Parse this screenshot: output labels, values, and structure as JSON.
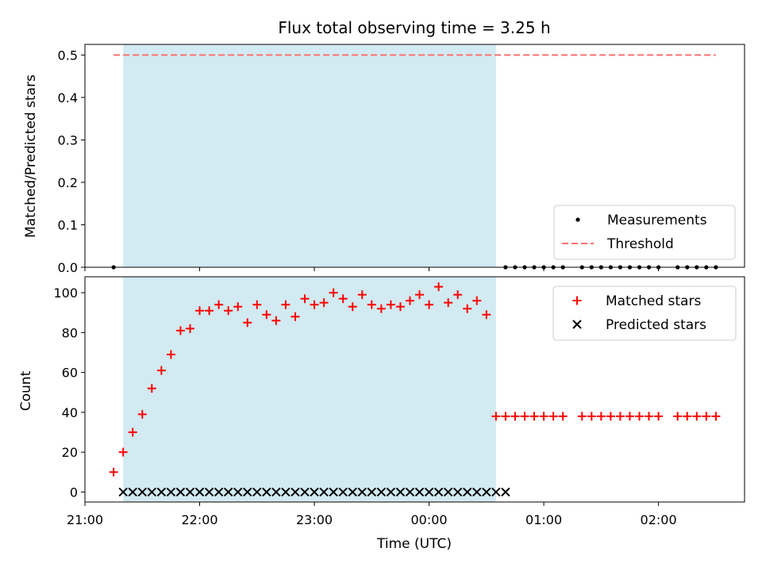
{
  "chart_data": [
    {
      "type": "scatter",
      "title": "Flux total observing time = 3.25 h",
      "ylabel": "Matched/Predicted stars",
      "xlabel": "",
      "x_axis": "time",
      "xlim": [
        "21:00",
        "02:45"
      ],
      "ylim": [
        0,
        0.525
      ],
      "yticks": [
        0.0,
        0.1,
        0.2,
        0.3,
        0.4,
        0.5
      ],
      "ytick_labels": [
        "0.0",
        "0.1",
        "0.2",
        "0.3",
        "0.4",
        "0.5"
      ],
      "observing_window": [
        "21:20",
        "00:35"
      ],
      "observing_window_color": "#add8e6",
      "series": [
        {
          "name": "Measurements",
          "marker": "dot",
          "color": "#000000",
          "x": [
            "21:15",
            "00:40",
            "00:45",
            "00:50",
            "00:55",
            "01:00",
            "01:05",
            "01:10",
            "01:20",
            "01:25",
            "01:30",
            "01:35",
            "01:40",
            "01:45",
            "01:50",
            "01:55",
            "02:00",
            "02:10",
            "02:15",
            "02:20",
            "02:25",
            "02:30"
          ],
          "y": [
            0,
            0,
            0,
            0,
            0,
            0,
            0,
            0,
            0,
            0,
            0,
            0,
            0,
            0,
            0,
            0,
            0,
            0,
            0,
            0,
            0,
            0
          ]
        },
        {
          "name": "Threshold",
          "marker": "dashed-line",
          "color": "#ff7070",
          "x": [
            "21:15",
            "02:30"
          ],
          "y": [
            0.5,
            0.5
          ]
        }
      ],
      "legend": "lower-right"
    },
    {
      "type": "scatter",
      "title": "",
      "ylabel": "Count",
      "xlabel": "Time (UTC)",
      "x_axis": "time",
      "xlim": [
        "21:00",
        "02:45"
      ],
      "ylim": [
        -5,
        108
      ],
      "yticks": [
        0,
        20,
        40,
        60,
        80,
        100
      ],
      "ytick_labels": [
        "0",
        "20",
        "40",
        "60",
        "80",
        "100"
      ],
      "xticks": [
        "21:00",
        "22:00",
        "23:00",
        "00:00",
        "01:00",
        "02:00"
      ],
      "xtick_labels": [
        "21:00",
        "22:00",
        "23:00",
        "00:00",
        "01:00",
        "02:00"
      ],
      "observing_window": [
        "21:20",
        "00:35"
      ],
      "observing_window_color": "#add8e6",
      "series": [
        {
          "name": "Matched stars",
          "marker": "plus",
          "color": "#ff0000",
          "x": [
            "21:15",
            "21:20",
            "21:25",
            "21:30",
            "21:35",
            "21:40",
            "21:45",
            "21:50",
            "21:55",
            "22:00",
            "22:05",
            "22:10",
            "22:15",
            "22:20",
            "22:25",
            "22:30",
            "22:35",
            "22:40",
            "22:45",
            "22:50",
            "22:55",
            "23:00",
            "23:05",
            "23:10",
            "23:15",
            "23:20",
            "23:25",
            "23:30",
            "23:35",
            "23:40",
            "23:45",
            "23:50",
            "23:55",
            "00:00",
            "00:05",
            "00:10",
            "00:15",
            "00:20",
            "00:25",
            "00:30",
            "00:35",
            "00:40",
            "00:45",
            "00:50",
            "00:55",
            "01:00",
            "01:05",
            "01:10",
            "01:20",
            "01:25",
            "01:30",
            "01:35",
            "01:40",
            "01:45",
            "01:50",
            "01:55",
            "02:00",
            "02:10",
            "02:15",
            "02:20",
            "02:25",
            "02:30"
          ],
          "y": [
            10,
            20,
            30,
            39,
            52,
            61,
            69,
            81,
            82,
            91,
            91,
            94,
            91,
            93,
            85,
            94,
            89,
            86,
            94,
            88,
            97,
            94,
            95,
            100,
            97,
            93,
            99,
            94,
            92,
            94,
            93,
            96,
            99,
            94,
            103,
            95,
            99,
            92,
            96,
            89,
            38,
            38,
            38,
            38,
            38,
            38,
            38,
            38,
            38,
            38,
            38,
            38,
            38,
            38,
            38,
            38,
            38,
            38,
            38,
            38,
            38,
            38
          ]
        },
        {
          "name": "Predicted stars",
          "marker": "x",
          "color": "#000000",
          "x": [
            "21:20",
            "21:25",
            "21:30",
            "21:35",
            "21:40",
            "21:45",
            "21:50",
            "21:55",
            "22:00",
            "22:05",
            "22:10",
            "22:15",
            "22:20",
            "22:25",
            "22:30",
            "22:35",
            "22:40",
            "22:45",
            "22:50",
            "22:55",
            "23:00",
            "23:05",
            "23:10",
            "23:15",
            "23:20",
            "23:25",
            "23:30",
            "23:35",
            "23:40",
            "23:45",
            "23:50",
            "23:55",
            "00:00",
            "00:05",
            "00:10",
            "00:15",
            "00:20",
            "00:25",
            "00:30",
            "00:35",
            "00:40"
          ],
          "y": [
            0,
            0,
            0,
            0,
            0,
            0,
            0,
            0,
            0,
            0,
            0,
            0,
            0,
            0,
            0,
            0,
            0,
            0,
            0,
            0,
            0,
            0,
            0,
            0,
            0,
            0,
            0,
            0,
            0,
            0,
            0,
            0,
            0,
            0,
            0,
            0,
            0,
            0,
            0,
            0,
            0
          ]
        }
      ],
      "legend": "upper-right"
    }
  ]
}
